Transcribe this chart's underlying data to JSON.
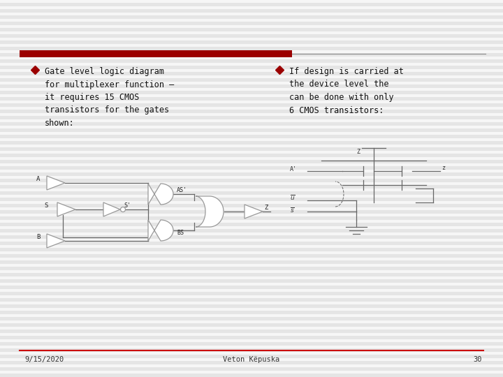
{
  "slide_bg": "#f0f0f0",
  "stripe_color": "#e0e0e0",
  "red_bar_color": "#9b0000",
  "thin_line_color": "#888888",
  "bullet_color": "#9b0000",
  "text_color": "#111111",
  "gate_color": "#999999",
  "wire_color": "#666666",
  "bullet1_text": "Gate level logic diagram\nfor multiplexer function –\nit requires 15 CMOS\ntransistors for the gates\nshown:",
  "bullet2_text": "If design is carried at\nthe device level the\ncan be done with only\n6 CMOS transistors:",
  "footer_date": "9/15/2020",
  "footer_center": "Veton Këpuska",
  "footer_page": "30"
}
